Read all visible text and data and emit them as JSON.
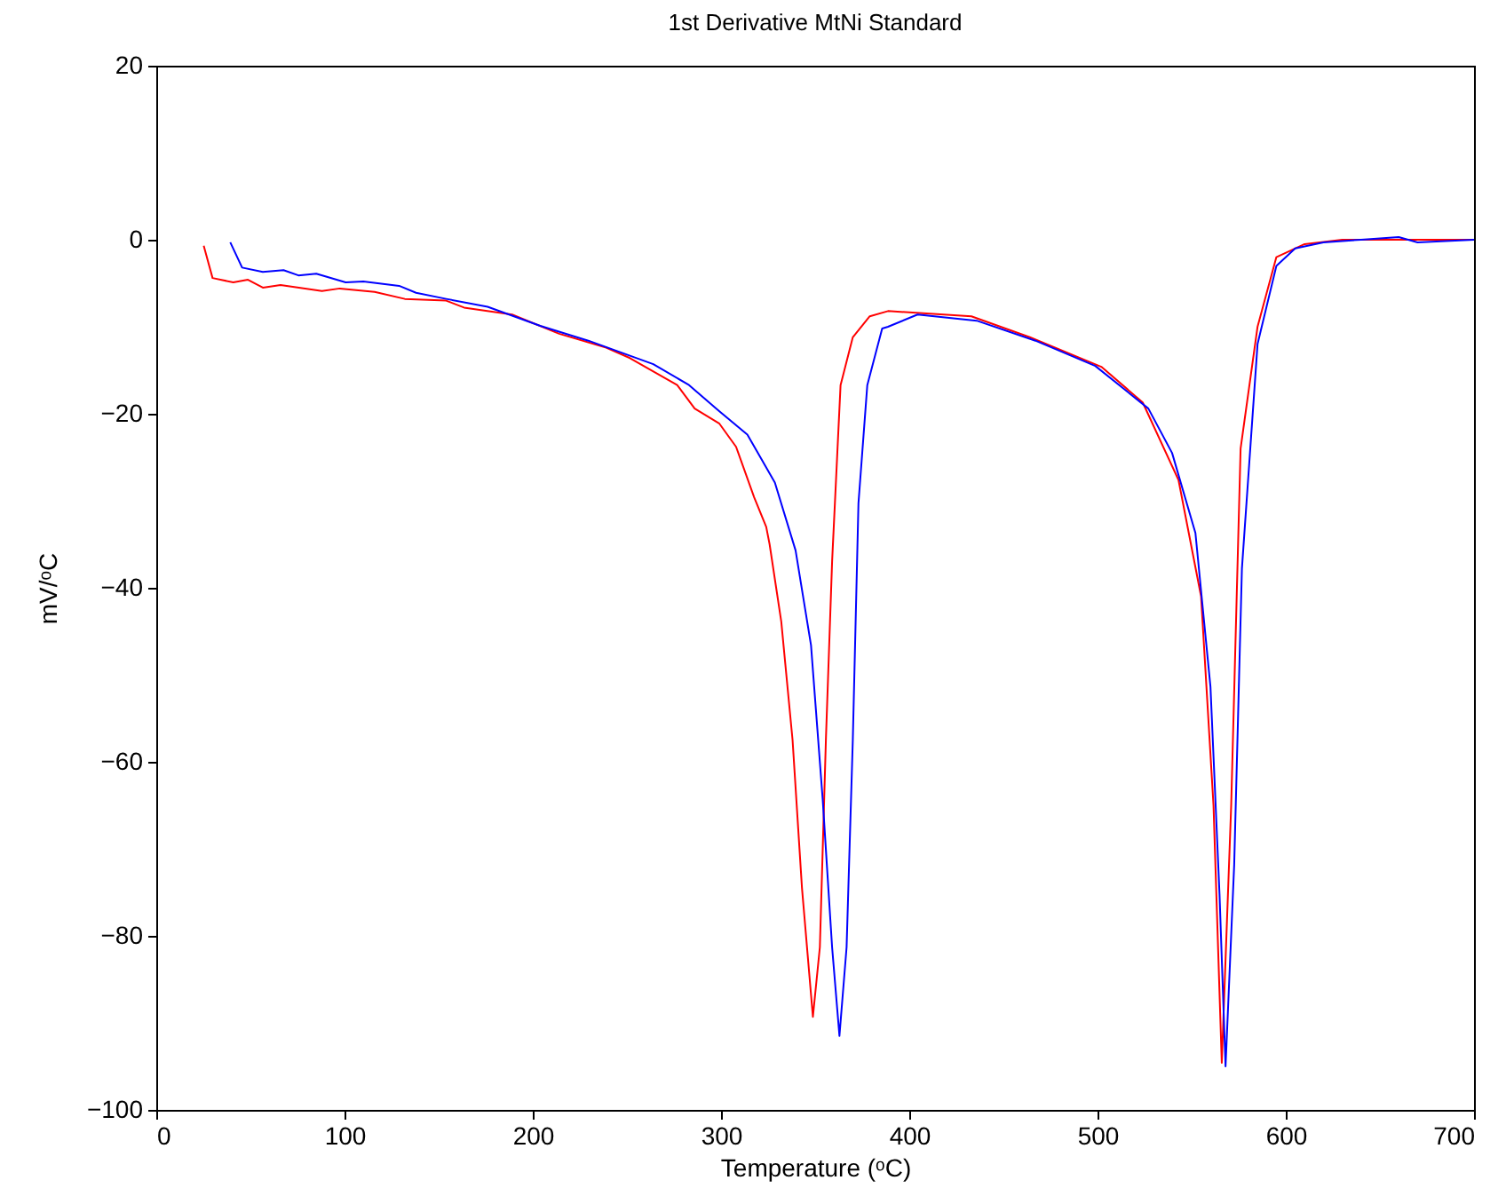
{
  "chart_data": {
    "type": "line",
    "title": "1st Derivative MtNi Standard",
    "xlabel": "Temperature (ᵒC)",
    "ylabel": "mV/ᵒC",
    "xlim": [
      0,
      700
    ],
    "xticks": [
      0,
      100,
      200,
      300,
      400,
      500,
      600,
      700
    ],
    "ylim": [
      -100,
      20
    ],
    "yticks": [
      -100,
      -80,
      -60,
      -40,
      -20,
      0,
      20
    ],
    "grid": false,
    "legend": false,
    "marker": "none",
    "line_style": "solid",
    "series": [
      {
        "color": "#ff0000",
        "x": [
          25.2,
          29.9,
          40.9,
          48.7,
          56.6,
          66,
          88,
          97.5,
          116,
          132,
          154,
          163.5,
          189,
          214,
          239,
          251.6,
          276.7,
          286,
          299,
          308,
          317.6,
          324,
          325.8,
          332,
          338,
          343,
          348.8,
          352.5,
          355.7,
          359,
          363.5,
          370,
          379,
          388.7,
          433,
          464,
          502,
          524,
          543,
          555,
          561.6,
          566,
          571,
          576,
          585,
          595,
          610,
          630,
          660,
          700
        ],
        "values": [
          -0.7,
          -4.4,
          -4.9,
          -4.6,
          -5.5,
          -5.2,
          -5.9,
          -5.6,
          -6,
          -6.8,
          -7,
          -7.8,
          -8.6,
          -10.8,
          -12.4,
          -13.6,
          -16.7,
          -19.4,
          -21.1,
          -23.8,
          -29.6,
          -33,
          -35,
          -43.9,
          -57.5,
          -74.5,
          -89.3,
          -81.3,
          -57.5,
          -37,
          -16.7,
          -11.2,
          -8.8,
          -8.2,
          -8.8,
          -11.2,
          -14.6,
          -18.7,
          -27.6,
          -41,
          -65,
          -94.6,
          -65,
          -24,
          -10,
          -2,
          -0.5,
          0,
          0,
          0
        ]
      },
      {
        "color": "#0000ff",
        "x": [
          39.3,
          45.6,
          56.6,
          67.6,
          75.5,
          85,
          100.6,
          110,
          129,
          138,
          154,
          176,
          204,
          229.5,
          264,
          283,
          299,
          314,
          328.6,
          339.6,
          347.8,
          354,
          359,
          362.9,
          366.7,
          370,
          373,
          377.7,
          385.6,
          388.7,
          404.4,
          435.8,
          467,
          498.8,
          527,
          539.6,
          552,
          560,
          564.8,
          568,
          572.6,
          576.7,
          585,
          595,
          605,
          620,
          640,
          660,
          670,
          700
        ],
        "values": [
          -0.3,
          -3.2,
          -3.7,
          -3.5,
          -4.1,
          -3.9,
          -4.9,
          -4.8,
          -5.3,
          -6.1,
          -6.8,
          -7.7,
          -9.9,
          -11.6,
          -14.3,
          -16.7,
          -19.7,
          -22.4,
          -27.9,
          -35.7,
          -46.6,
          -64.3,
          -81.3,
          -91.5,
          -81.3,
          -57.5,
          -30.3,
          -16.7,
          -10.2,
          -10,
          -8.6,
          -9.3,
          -11.6,
          -14.5,
          -19.4,
          -24.5,
          -33.7,
          -51.4,
          -75.2,
          -95,
          -71.8,
          -37.8,
          -12,
          -3,
          -1,
          -0.3,
          0,
          0.3,
          -0.3,
          0
        ]
      }
    ]
  }
}
